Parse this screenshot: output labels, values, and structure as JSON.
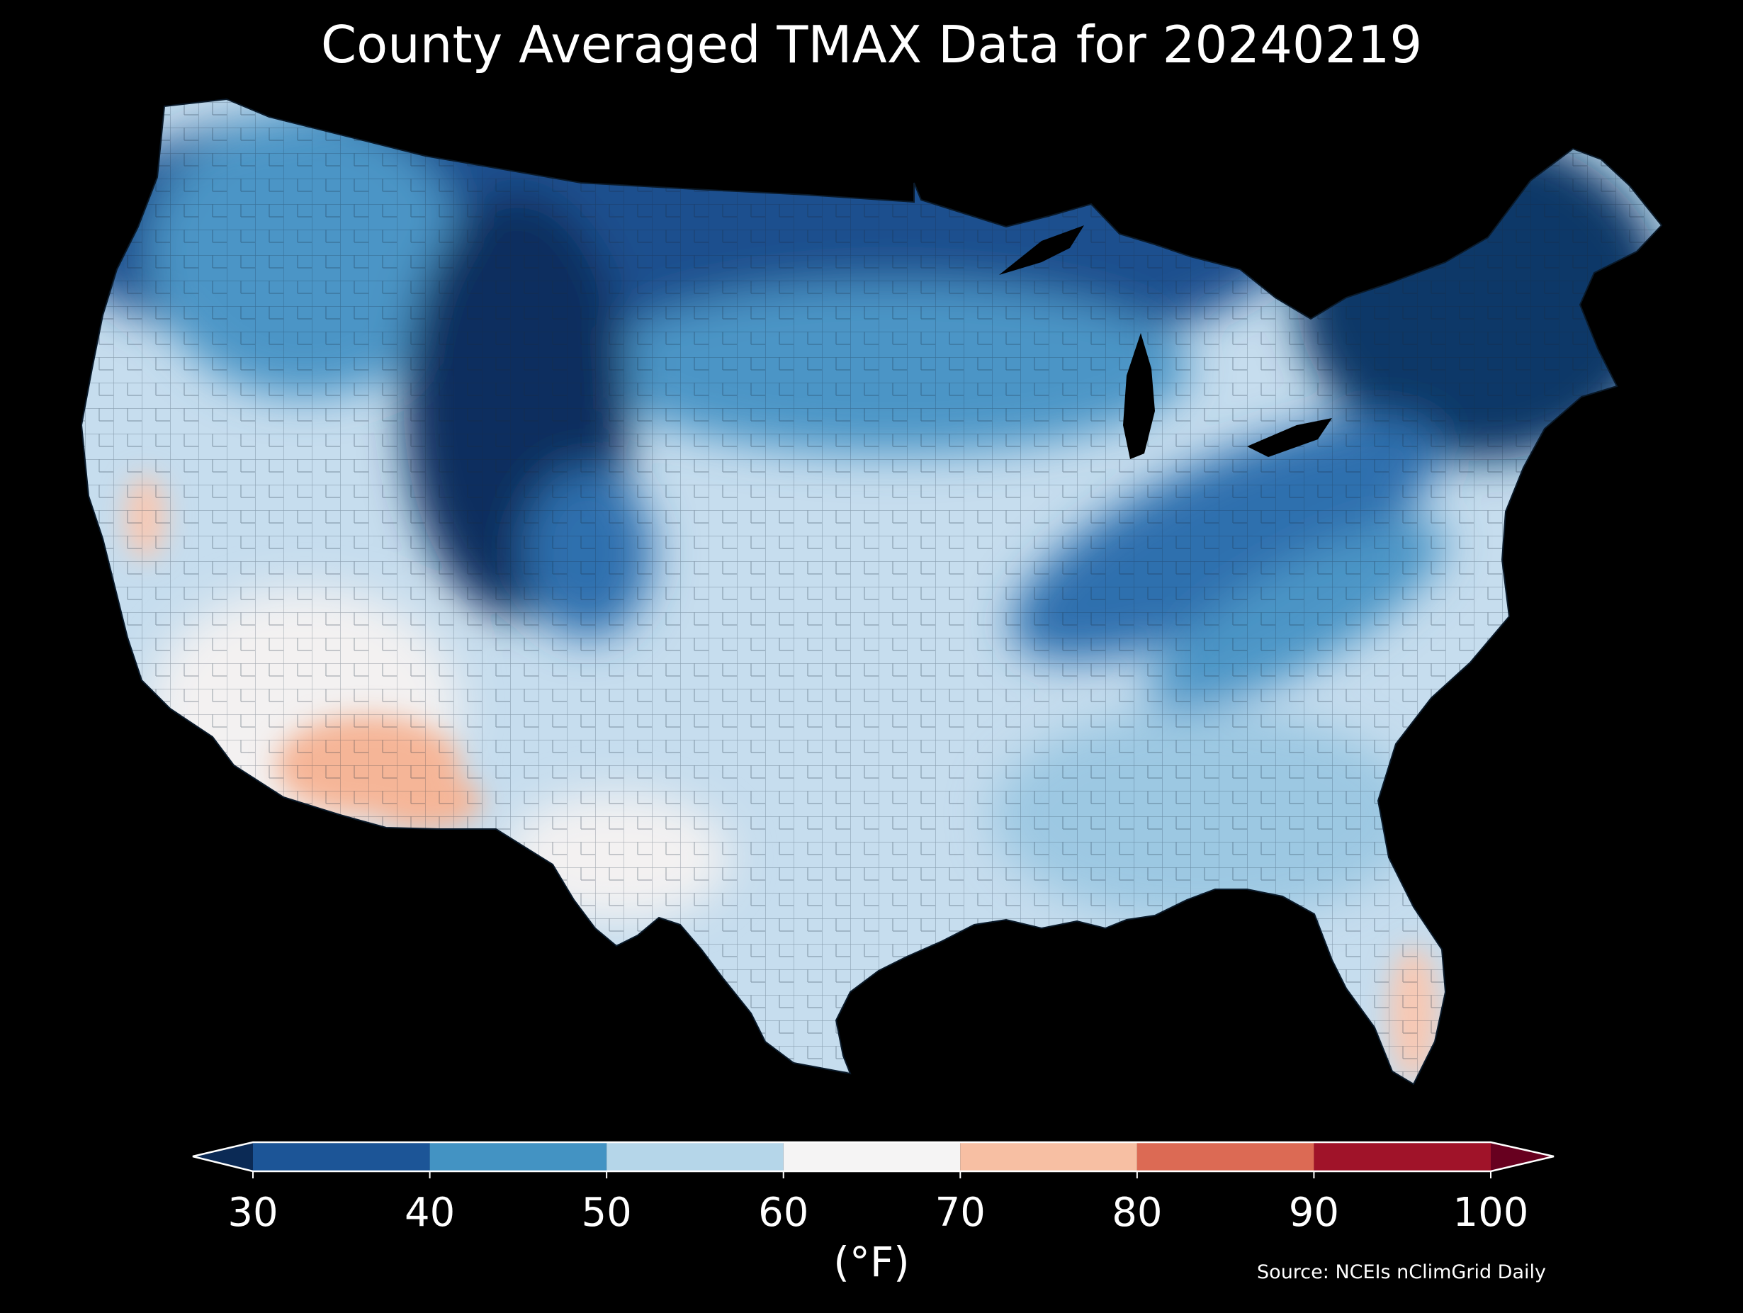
{
  "title": "County Averaged TMAX Data for 20240219",
  "colorbar": {
    "ticks": [
      "30",
      "40",
      "50",
      "60",
      "70",
      "80",
      "90",
      "100"
    ],
    "units_label": "(°F)",
    "under_color": "#0b2a55",
    "over_color": "#67001f",
    "bins": [
      {
        "range": [
          30,
          40
        ],
        "color": "#1c5597"
      },
      {
        "range": [
          40,
          50
        ],
        "color": "#4393c3"
      },
      {
        "range": [
          50,
          60
        ],
        "color": "#b5d6e9"
      },
      {
        "range": [
          60,
          70
        ],
        "color": "#f5f4f4"
      },
      {
        "range": [
          70,
          80
        ],
        "color": "#f7bfa3"
      },
      {
        "range": [
          80,
          90
        ],
        "color": "#dc6a54"
      },
      {
        "range": [
          90,
          100
        ],
        "color": "#a01329"
      }
    ]
  },
  "source": "Source: NCEIs nClimGrid Daily",
  "map": {
    "subject": "Contiguous United States counties shaded by average daily maximum temperature",
    "colors": {
      "land_base": "#c6ddee",
      "northern_cold": "#1d4f8e",
      "rockies_coldest": "#0e2f5f",
      "northeast_cold": "#103967",
      "ohio_band": "#2f6fae",
      "mid_blue": "#4b95c6",
      "southwest_white": "#f3f1f1",
      "arizona_warm": "#f5b597",
      "florida_warm": "#f8c8b2",
      "water": "#000000"
    }
  }
}
